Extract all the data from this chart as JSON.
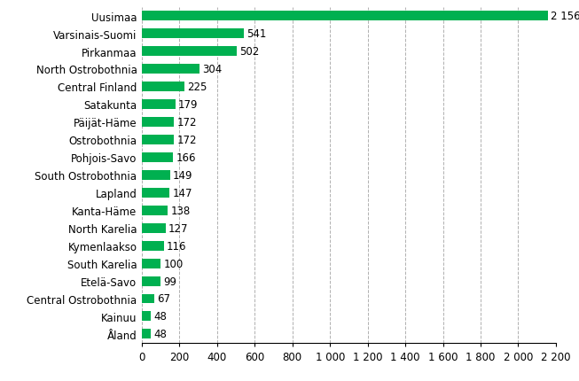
{
  "categories": [
    "Uusimaa",
    "Varsinais-Suomi",
    "Pirkanmaa",
    "North Ostrobothnia",
    "Central Finland",
    "Satakunta",
    "Päijät-Häme",
    "Ostrobothnia",
    "Pohjois-Savo",
    "South Ostrobothnia",
    "Lapland",
    "Kanta-Häme",
    "North Karelia",
    "Kymenlaakso",
    "South Karelia",
    "Etelä-Savo",
    "Central Ostrobothnia",
    "Kainuu",
    "Åland"
  ],
  "values": [
    2156,
    541,
    502,
    304,
    225,
    179,
    172,
    172,
    166,
    149,
    147,
    138,
    127,
    116,
    100,
    99,
    67,
    48,
    48
  ],
  "bar_color": "#00b050",
  "background_color": "#ffffff",
  "xlim": [
    0,
    2200
  ],
  "xticks": [
    0,
    200,
    400,
    600,
    800,
    1000,
    1200,
    1400,
    1600,
    1800,
    2000,
    2200
  ],
  "xtick_labels": [
    "0",
    "200",
    "400",
    "600",
    "800",
    "1 000",
    "1 200",
    "1 400",
    "1 600",
    "1 800",
    "2 000",
    "2 200"
  ],
  "grid_color": "#b0b0b0",
  "bar_height": 0.55,
  "label_fontsize": 8.5,
  "value_fontsize": 8.5,
  "tick_fontsize": 8.5
}
